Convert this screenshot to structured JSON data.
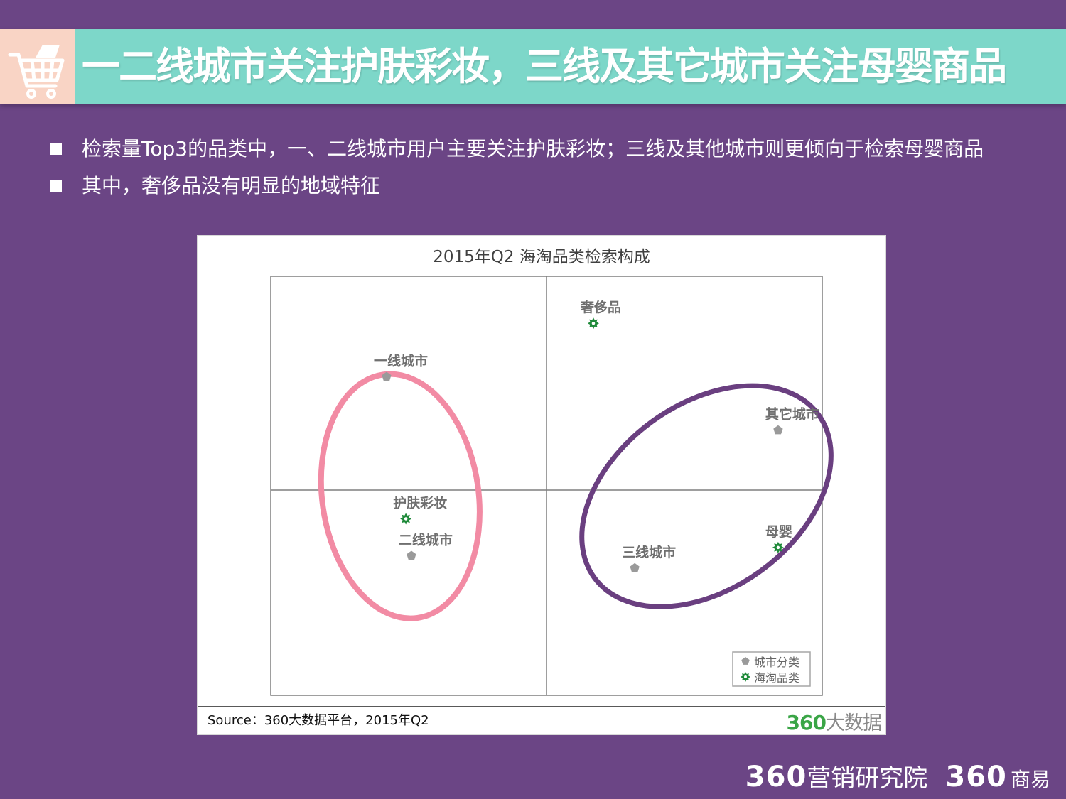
{
  "title": "一二线城市关注护肤彩妆，三线及其它城市关注母婴商品",
  "bullets": [
    "检索量Top3的品类中，一、二线城市用户主要关注护肤彩妆；三线及其他城市则更倾向于检索母婴商品",
    "其中，奢侈品没有明显的地域特征"
  ],
  "colors": {
    "background": "#6b4585",
    "title_bar": "#7dd7c9",
    "icon_box": "#f9d4c5",
    "pink_group": "#f28ba4",
    "purple_group": "#6a3f80",
    "city_marker": "#9a9a9a",
    "category_marker": "#1f8a3a"
  },
  "icons": {
    "title": "shopping-cart-icon"
  },
  "chart_data": {
    "type": "scatter",
    "title": "2015年Q2 海淘品类检索构成",
    "xlabel": "",
    "ylabel": "",
    "xlim": [
      -1,
      1
    ],
    "ylim": [
      -1,
      1
    ],
    "grid": false,
    "quadrant_lines": true,
    "legend_position": "bottom-right",
    "series": [
      {
        "name": "城市分类",
        "marker": "pentagon",
        "points": [
          {
            "label": "一线城市",
            "x": -0.58,
            "y": 0.53
          },
          {
            "label": "二线城市",
            "x": -0.49,
            "y": -0.32
          },
          {
            "label": "其它城市",
            "x": 0.84,
            "y": 0.28
          },
          {
            "label": "三线城市",
            "x": 0.32,
            "y": -0.38
          }
        ]
      },
      {
        "name": "海淘品类",
        "marker": "gear",
        "points": [
          {
            "label": "奢侈品",
            "x": 0.17,
            "y": 0.78
          },
          {
            "label": "护肤彩妆",
            "x": -0.51,
            "y": -0.14
          },
          {
            "label": "母婴",
            "x": 0.84,
            "y": -0.28
          }
        ]
      }
    ],
    "groupings": [
      {
        "color": "pink",
        "members": [
          "一线城市",
          "二线城市",
          "护肤彩妆"
        ]
      },
      {
        "color": "purple",
        "members": [
          "其它城市",
          "三线城市",
          "母婴"
        ]
      }
    ]
  },
  "source": "Source：360大数据平台，2015年Q2",
  "source_logo": {
    "num": "360",
    "text": "大数据"
  },
  "footer": {
    "brand1_num": "360",
    "brand1_text": "营销研究院",
    "brand2_num": "360",
    "brand2_text": "商易"
  }
}
